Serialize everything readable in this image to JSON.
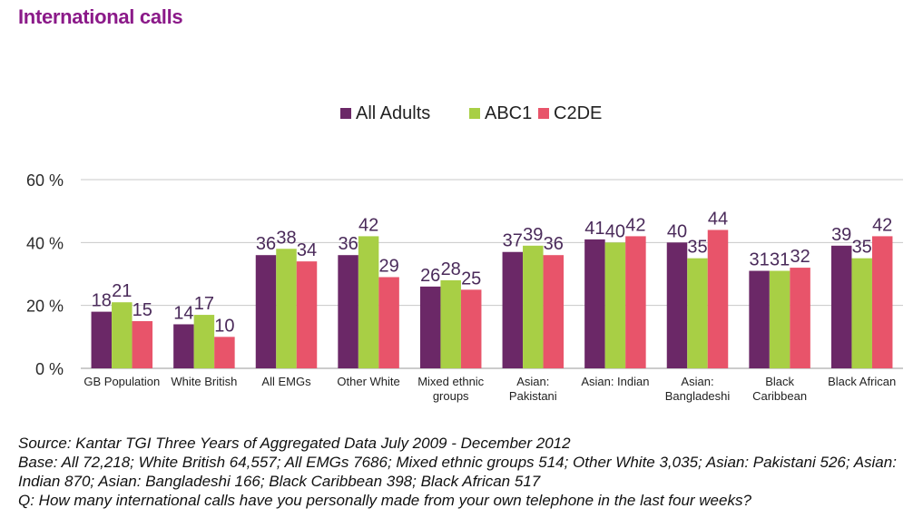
{
  "page": {
    "title": "International calls"
  },
  "chart_data": {
    "type": "bar",
    "categories": [
      [
        "GB Population"
      ],
      [
        "White British"
      ],
      [
        "All EMGs"
      ],
      [
        "Other White"
      ],
      [
        "Mixed ethnic",
        "groups"
      ],
      [
        "Asian:",
        "Pakistani"
      ],
      [
        "Asian: Indian"
      ],
      [
        "Asian:",
        "Bangladeshi"
      ],
      [
        "Black",
        "Caribbean"
      ],
      [
        "Black African"
      ]
    ],
    "series": [
      {
        "name": "All Adults",
        "color": "#6b2867",
        "values": [
          18,
          14,
          36,
          36,
          26,
          37,
          41,
          40,
          31,
          39
        ]
      },
      {
        "name": "ABC1",
        "color": "#a8cf45",
        "values": [
          21,
          17,
          38,
          42,
          28,
          39,
          40,
          35,
          31,
          35
        ]
      },
      {
        "name": "C2DE",
        "color": "#e8546a",
        "values": [
          15,
          10,
          34,
          29,
          25,
          36,
          42,
          44,
          32,
          42
        ]
      }
    ],
    "ylim": [
      0,
      60
    ],
    "yticks": [
      0,
      20,
      40,
      60
    ],
    "ytick_labels": [
      "0 %",
      "20 %",
      "40 %",
      "60 %"
    ],
    "grid": true,
    "legend_position": "top-center"
  },
  "footer": {
    "source": "Source: Kantar TGI Three Years of Aggregated Data July 2009 - December 2012",
    "base": "Base: All 72,218; White British 64,557; All EMGs 7686; Mixed ethnic groups 514; Other White 3,035; Asian: Pakistani 526; Asian: Indian 870; Asian: Bangladeshi 166; Black Caribbean 398; Black African 517",
    "question": "Q: How many international calls have you personally made from your own telephone in the last four weeks?"
  }
}
